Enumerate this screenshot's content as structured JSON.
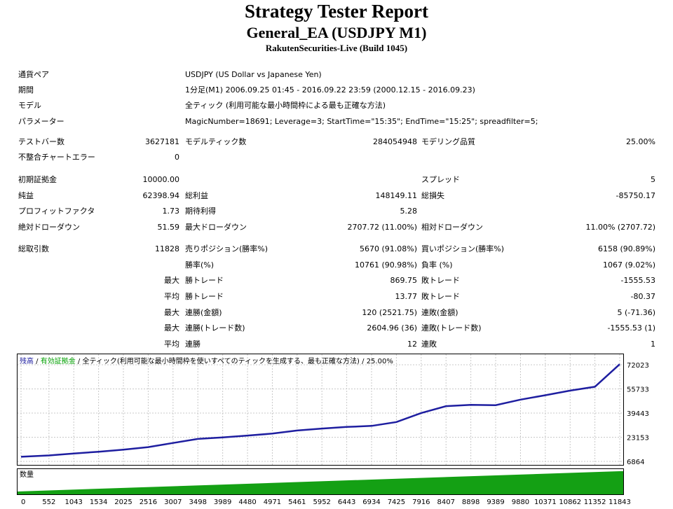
{
  "header": {
    "title": "Strategy Tester Report",
    "subtitle": "General_EA (USDJPY M1)",
    "server": "RakutenSecurities-Live (Build 1045)"
  },
  "info": [
    {
      "label": "通貨ペア",
      "value": "USDJPY (US Dollar vs Japanese Yen)"
    },
    {
      "label": "期間",
      "value": "1分足(M1) 2006.09.25 01:45 - 2016.09.22 23:59 (2000.12.15 - 2016.09.23)"
    },
    {
      "label": "モデル",
      "value": "全ティック (利用可能な最小時間枠による最も正確な方法)"
    },
    {
      "label": "パラメーター",
      "value": "MagicNumber=18691; Leverage=3; StartTime=\"15:35\"; EndTime=\"15:25\"; spreadfilter=5;"
    }
  ],
  "stats": {
    "test_bars_label": "テストバー数",
    "test_bars": "3627181",
    "model_ticks_label": "モデルティック数",
    "model_ticks": "284054948",
    "model_quality_label": "モデリング品質",
    "model_quality": "25.00%",
    "mismatch_label": "不整合チャートエラー",
    "mismatch": "0",
    "initial_deposit_label": "初期証拠金",
    "initial_deposit": "10000.00",
    "spread_label": "スプレッド",
    "spread": "5",
    "net_profit_label": "純益",
    "net_profit": "62398.94",
    "gross_profit_label": "総利益",
    "gross_profit": "148149.11",
    "gross_loss_label": "総損失",
    "gross_loss": "-85750.17",
    "profit_factor_label": "プロフィットファクタ",
    "profit_factor": "1.73",
    "expected_payoff_label": "期待利得",
    "expected_payoff": "5.28",
    "abs_dd_label": "絶対ドローダウン",
    "abs_dd": "51.59",
    "max_dd_label": "最大ドローダウン",
    "max_dd": "2707.72 (11.00%)",
    "rel_dd_label": "相対ドローダウン",
    "rel_dd": "11.00% (2707.72)",
    "total_trades_label": "総取引数",
    "total_trades": "11828",
    "short_label": "売りポジション(勝率%)",
    "short": "5670 (91.08%)",
    "long_label": "買いポジション(勝率%)",
    "long": "6158 (90.89%)",
    "win_rate_label": "勝率(%)",
    "win_rate": "10761 (90.98%)",
    "loss_rate_label": "負率 (%)",
    "loss_rate": "1067 (9.02%)",
    "largest": "最大",
    "average": "平均",
    "win_trade_label": "勝トレード",
    "loss_trade_label": "敗トレード",
    "largest_win": "869.75",
    "largest_loss": "-1555.53",
    "avg_win": "13.77",
    "avg_loss": "-80.37",
    "cons_win_amt_label": "連勝(金額)",
    "cons_win_amt": "120 (2521.75)",
    "cons_loss_amt_label": "連敗(金額)",
    "cons_loss_amt": "5 (-71.36)",
    "cons_profit_label": "連勝(トレード数)",
    "cons_profit": "2604.96 (36)",
    "cons_loss_cnt_label": "連敗(トレード数)",
    "cons_loss_cnt": "-1555.53 (1)",
    "avg_cons_win_label": "連勝",
    "avg_cons_win": "12",
    "avg_cons_loss_label": "連敗",
    "avg_cons_loss": "1"
  },
  "chart_caption": {
    "balance": "残高",
    "sep1": " / ",
    "equity": "有効証拠金",
    "rest": " / 全ティック(利用可能な最小時間枠を使いすべてのティックを生成する、最も正確な方法) / 25.00%"
  },
  "volume_label": "数量",
  "colors": {
    "balance": "#1e1ea0",
    "equity": "#00a000",
    "volume": "#14a014",
    "grid": "#c8c8c8"
  },
  "chart_data": {
    "type": "line",
    "x": [
      0,
      552,
      1043,
      1534,
      2025,
      2516,
      3007,
      3498,
      3989,
      4480,
      4971,
      5461,
      5952,
      6443,
      6934,
      7425,
      7916,
      8407,
      8898,
      9389,
      9880,
      10371,
      10862,
      11352,
      11843
    ],
    "xlim": [
      0,
      11843
    ],
    "ylim": [
      6864,
      72023
    ],
    "yticks": [
      72023,
      55733,
      39443,
      23153,
      6864
    ],
    "series": [
      {
        "values": [
          10000,
          10900,
          12200,
          13400,
          14800,
          16500,
          19300,
          22000,
          23000,
          24300,
          25600,
          27700,
          29000,
          30100,
          30800,
          33400,
          39500,
          44100,
          45000,
          44800,
          48500,
          51500,
          54600,
          57200,
          72400
        ]
      }
    ]
  }
}
